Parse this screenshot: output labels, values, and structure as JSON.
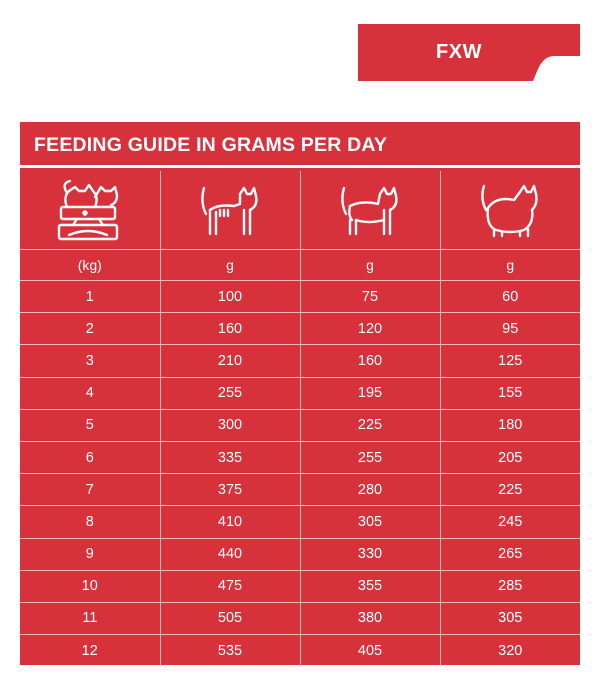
{
  "header": {
    "tab_label": "FXW"
  },
  "colors": {
    "brand_red": "#d7323c",
    "text": "#ffffff",
    "grid": "#f3b9bd"
  },
  "panel": {
    "title": "FEEDING GUIDE IN GRAMS PER DAY",
    "icons": [
      "cat-weighing-scale-icon",
      "thin-cat-icon",
      "normal-cat-icon",
      "overweight-cat-icon"
    ],
    "units": [
      "(kg)",
      "g",
      "g",
      "g"
    ],
    "rows": [
      [
        "1",
        "100",
        "75",
        "60"
      ],
      [
        "2",
        "160",
        "120",
        "95"
      ],
      [
        "3",
        "210",
        "160",
        "125"
      ],
      [
        "4",
        "255",
        "195",
        "155"
      ],
      [
        "5",
        "300",
        "225",
        "180"
      ],
      [
        "6",
        "335",
        "255",
        "205"
      ],
      [
        "7",
        "375",
        "280",
        "225"
      ],
      [
        "8",
        "410",
        "305",
        "245"
      ],
      [
        "9",
        "440",
        "330",
        "265"
      ],
      [
        "10",
        "475",
        "355",
        "285"
      ],
      [
        "11",
        "505",
        "380",
        "305"
      ],
      [
        "12",
        "535",
        "405",
        "320"
      ]
    ]
  }
}
